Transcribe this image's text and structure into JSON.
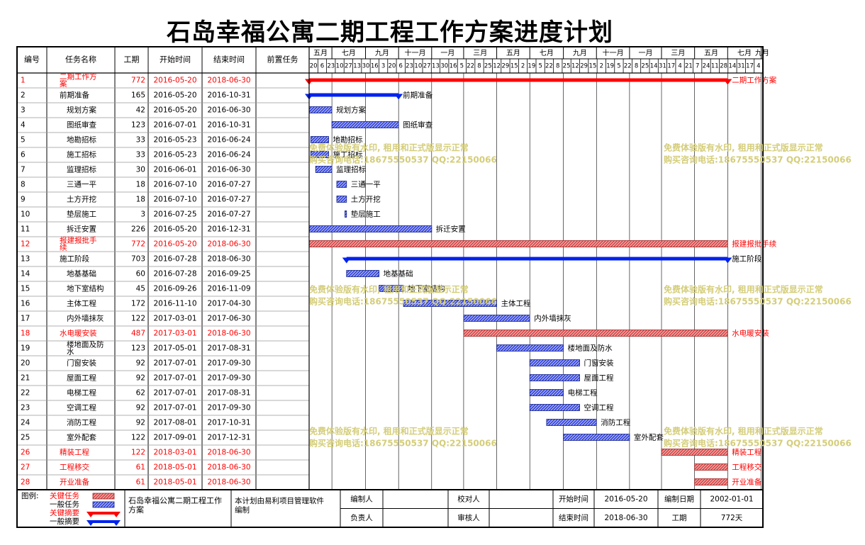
{
  "title": "石岛幸福公寓二期工程工作方案进度计划",
  "table": {
    "columns": [
      "编号",
      "任务名称",
      "工期",
      "开始时间",
      "结束时间",
      "前置任务"
    ]
  },
  "timescale": {
    "months": [
      "五月",
      "七月",
      "九月",
      "十一月",
      "一月",
      "三月",
      "五月",
      "七月",
      "九月",
      "十一月",
      "一月",
      "三月",
      "五月",
      "七月",
      "九月"
    ],
    "days": [
      "20",
      "6",
      "23",
      "10",
      "27",
      "13",
      "30",
      "16",
      "3",
      "20",
      "6",
      "23",
      "10",
      "27",
      "13",
      "30",
      "16",
      "5",
      "22",
      "8",
      "25",
      "12",
      "29",
      "15",
      "2",
      "19",
      "5",
      "22",
      "8",
      "25",
      "12",
      "29",
      "15",
      "2",
      "19",
      "5",
      "22",
      "8",
      "25",
      "14",
      "31",
      "17",
      "4",
      "21",
      "7",
      "24",
      "11",
      "28",
      "14",
      "31",
      "17",
      "4"
    ]
  },
  "colors": {
    "critical_text": "#ff0000",
    "normal_text": "#000000",
    "normal_bar": "#1f2fd0",
    "critical_bar": "#d94040",
    "summary_bar": "#0022ee",
    "critical_summary_bar": "#ff0000",
    "watermark": "#d4cd7a"
  },
  "chart_data": {
    "type": "gantt",
    "x_range": [
      "2016-05-20",
      "2018-09-04"
    ],
    "tasks": [
      {
        "id": "1",
        "name": "二期工作方案",
        "duration": "772",
        "start": "2016-05-20",
        "end": "2018-06-30",
        "kind": "critical-summary"
      },
      {
        "id": "2",
        "name": "前期准备",
        "duration": "165",
        "start": "2016-05-20",
        "end": "2016-10-31",
        "kind": "summary"
      },
      {
        "id": "3",
        "name": "规划方案",
        "duration": "42",
        "start": "2016-05-20",
        "end": "2016-06-30",
        "kind": "normal"
      },
      {
        "id": "4",
        "name": "图纸审查",
        "duration": "123",
        "start": "2016-07-01",
        "end": "2016-10-31",
        "kind": "normal"
      },
      {
        "id": "5",
        "name": "地勘招标",
        "duration": "33",
        "start": "2016-05-23",
        "end": "2016-06-24",
        "kind": "normal"
      },
      {
        "id": "6",
        "name": "施工招标",
        "duration": "33",
        "start": "2016-05-23",
        "end": "2016-06-24",
        "kind": "normal"
      },
      {
        "id": "7",
        "name": "监理招标",
        "duration": "30",
        "start": "2016-06-01",
        "end": "2016-06-30",
        "kind": "normal"
      },
      {
        "id": "8",
        "name": "三通一平",
        "duration": "18",
        "start": "2016-07-10",
        "end": "2016-07-27",
        "kind": "normal"
      },
      {
        "id": "9",
        "name": "土方开挖",
        "duration": "18",
        "start": "2016-07-10",
        "end": "2016-07-27",
        "kind": "normal"
      },
      {
        "id": "10",
        "name": "垫层施工",
        "duration": "3",
        "start": "2016-07-25",
        "end": "2016-07-27",
        "kind": "normal"
      },
      {
        "id": "11",
        "name": "拆迁安置",
        "duration": "226",
        "start": "2016-05-20",
        "end": "2016-12-31",
        "kind": "normal"
      },
      {
        "id": "12",
        "name": "报建报批手续",
        "duration": "772",
        "start": "2016-05-20",
        "end": "2018-06-30",
        "kind": "critical"
      },
      {
        "id": "13",
        "name": "施工阶段",
        "duration": "703",
        "start": "2016-07-28",
        "end": "2018-06-30",
        "kind": "summary"
      },
      {
        "id": "14",
        "name": "地基基础",
        "duration": "60",
        "start": "2016-07-28",
        "end": "2016-09-25",
        "kind": "normal"
      },
      {
        "id": "15",
        "name": "地下室结构",
        "duration": "45",
        "start": "2016-09-26",
        "end": "2016-11-09",
        "kind": "normal"
      },
      {
        "id": "16",
        "name": "主体工程",
        "duration": "172",
        "start": "2016-11-10",
        "end": "2017-04-30",
        "kind": "normal"
      },
      {
        "id": "17",
        "name": "内外墙抹灰",
        "duration": "122",
        "start": "2017-03-01",
        "end": "2017-06-30",
        "kind": "normal"
      },
      {
        "id": "18",
        "name": "水电暖安装",
        "duration": "487",
        "start": "2017-03-01",
        "end": "2018-06-30",
        "kind": "critical"
      },
      {
        "id": "19",
        "name": "楼地面及防水",
        "duration": "123",
        "start": "2017-05-01",
        "end": "2017-08-31",
        "kind": "normal"
      },
      {
        "id": "20",
        "name": "门窗安装",
        "duration": "92",
        "start": "2017-07-01",
        "end": "2017-09-30",
        "kind": "normal"
      },
      {
        "id": "21",
        "name": "屋面工程",
        "duration": "92",
        "start": "2017-07-01",
        "end": "2017-09-30",
        "kind": "normal"
      },
      {
        "id": "22",
        "name": "电梯工程",
        "duration": "62",
        "start": "2017-07-01",
        "end": "2017-08-31",
        "kind": "normal"
      },
      {
        "id": "23",
        "name": "空调工程",
        "duration": "92",
        "start": "2017-07-01",
        "end": "2017-09-30",
        "kind": "normal"
      },
      {
        "id": "24",
        "name": "消防工程",
        "duration": "92",
        "start": "2017-08-01",
        "end": "2017-10-31",
        "kind": "normal"
      },
      {
        "id": "25",
        "name": "室外配套",
        "duration": "122",
        "start": "2017-09-01",
        "end": "2017-12-31",
        "kind": "normal"
      },
      {
        "id": "26",
        "name": "精装工程",
        "duration": "122",
        "start": "2018-03-01",
        "end": "2018-06-30",
        "kind": "critical"
      },
      {
        "id": "27",
        "name": "工程移交",
        "duration": "61",
        "start": "2018-05-01",
        "end": "2018-06-30",
        "kind": "critical"
      },
      {
        "id": "28",
        "name": "开业准备",
        "duration": "61",
        "start": "2018-05-01",
        "end": "2018-06-30",
        "kind": "critical"
      }
    ]
  },
  "footer": {
    "legend_label": "图例:",
    "legend_items": [
      "关键任务",
      "一般任务",
      "关键摘要",
      "一般摘要"
    ],
    "project_name": "石岛幸福公寓二期工程工作方案",
    "note": "本计划由易利项目管理软件编制",
    "compiler_label": "编制人",
    "compiler_value": "",
    "checker_label": "校对人",
    "checker_value": "",
    "owner_label": "负责人",
    "owner_value": "",
    "reviewer_label": "审核人",
    "reviewer_value": "",
    "start_label": "开始时间",
    "start_value": "2016-05-20",
    "end_label": "结束时间",
    "end_value": "2018-06-30",
    "date_label": "编制日期",
    "date_value": "2002-01-01",
    "duration_label": "工期",
    "duration_value": "772天"
  },
  "watermark": {
    "line1": "免费体验版有水印, 租用和正式版显示正常",
    "line2": "购买咨询电话:18675550537 QQ:22150066"
  }
}
